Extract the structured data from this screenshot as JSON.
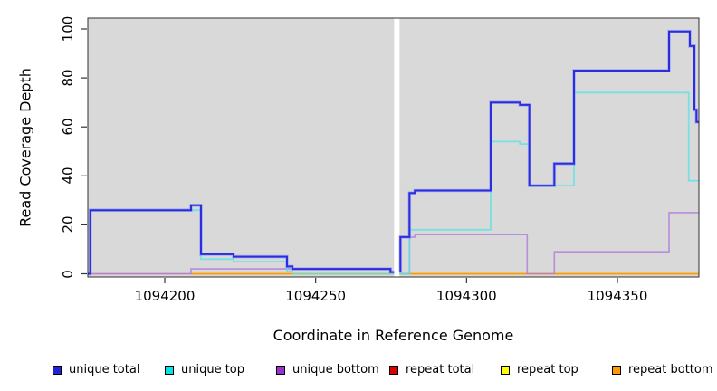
{
  "figure": {
    "x_axis_label": "Coordinate in Reference Genome",
    "y_axis_label": "Read Coverage Depth"
  },
  "chart_data": {
    "type": "line",
    "subtype": "step-coverage",
    "title": "",
    "xlabel": "Coordinate in Reference Genome",
    "ylabel": "Read Coverage Depth",
    "x_ticks": [
      1094200,
      1094250,
      1094300,
      1094350
    ],
    "y_ticks": [
      0,
      20,
      40,
      60,
      80,
      100
    ],
    "x_range": [
      1094174.5,
      1094377
    ],
    "y_range": [
      0,
      105
    ],
    "plot_bg": "#d9d9d9",
    "gap_band": {
      "x_start": 1094276.0,
      "x_end": 1094277.8,
      "color": "#ffffff"
    },
    "grid": false,
    "legend_position": "bottom",
    "series": [
      {
        "name": "repeat total",
        "line_color": "#e8808d",
        "width": 1.4,
        "opacity": 0.9,
        "parts": [
          [
            [
              1094174.6,
              0
            ],
            [
              1094276,
              0
            ]
          ],
          [
            [
              1094277.8,
              0
            ],
            [
              1094376.9,
              0
            ]
          ]
        ]
      },
      {
        "name": "repeat top",
        "line_color": "#ffff33",
        "width": 1.4,
        "opacity": 1,
        "parts": [
          [
            [
              1094208.7,
              0
            ],
            [
              1094276,
              0
            ]
          ],
          [
            [
              1094277.8,
              0
            ],
            [
              1094376.9,
              0
            ]
          ]
        ]
      },
      {
        "name": "repeat bottom",
        "line_color": "#ff9a00",
        "width": 1.8,
        "opacity": 1,
        "parts": [
          [
            [
              1094208.7,
              0
            ],
            [
              1094276,
              0
            ]
          ],
          [
            [
              1094277.8,
              0
            ],
            [
              1094376.9,
              0
            ]
          ]
        ]
      },
      {
        "name": "unique bottom",
        "line_color": "#b27fd9",
        "width": 1.6,
        "opacity": 0.85,
        "parts": [
          [
            [
              1094174.6,
              0
            ],
            [
              1094208.7,
              2
            ],
            [
              1094274.8,
              0.5
            ],
            [
              1094276,
              0.5
            ]
          ],
          [
            [
              1094277.8,
              0
            ],
            [
              1094281.1,
              15
            ],
            [
              1094282.9,
              16
            ],
            [
              1094320.1,
              0
            ],
            [
              1094329.1,
              9
            ],
            [
              1094367.1,
              25
            ],
            [
              1094376.9,
              25
            ]
          ]
        ]
      },
      {
        "name": "unique top",
        "line_color": "#5de2e6",
        "width": 1.8,
        "opacity": 0.8,
        "parts": [
          [
            [
              1094174.6,
              0
            ],
            [
              1094175.3,
              26
            ],
            [
              1094212,
              6
            ],
            [
              1094222.8,
              5
            ],
            [
              1094240.5,
              1
            ],
            [
              1094242.3,
              0
            ],
            [
              1094276,
              0
            ]
          ],
          [
            [
              1094277.8,
              0
            ],
            [
              1094281.1,
              18
            ],
            [
              1094308,
              54
            ],
            [
              1094317.7,
              53
            ],
            [
              1094320.8,
              36
            ],
            [
              1094335.6,
              74
            ],
            [
              1094373.6,
              38
            ],
            [
              1094376.9,
              38
            ]
          ]
        ]
      },
      {
        "name": "unique total",
        "line_color": "#2d2de0",
        "halo_color": "#7b8cf5",
        "width": 2,
        "opacity": 1,
        "parts": [
          [
            [
              1094174.6,
              0
            ],
            [
              1094175.3,
              26
            ],
            [
              1094208.7,
              28
            ],
            [
              1094212,
              8
            ],
            [
              1094222.8,
              7
            ],
            [
              1094240.5,
              3
            ],
            [
              1094242.3,
              2
            ],
            [
              1094274.8,
              0.7
            ],
            [
              1094276,
              0.7
            ]
          ],
          [
            [
              1094277.8,
              1
            ],
            [
              1094278.1,
              15
            ],
            [
              1094281.1,
              33
            ],
            [
              1094282.9,
              34
            ],
            [
              1094308,
              70
            ],
            [
              1094317.7,
              69
            ],
            [
              1094320.8,
              36
            ],
            [
              1094329.1,
              45
            ],
            [
              1094335.6,
              83
            ],
            [
              1094367.1,
              99
            ],
            [
              1094374,
              93
            ],
            [
              1094375.5,
              67
            ],
            [
              1094376.2,
              62
            ],
            [
              1094376.9,
              62
            ]
          ]
        ]
      }
    ]
  },
  "legend": [
    {
      "label": "unique total",
      "swatch_color": "#2222dd"
    },
    {
      "label": "unique top",
      "swatch_color": "#00e5e5"
    },
    {
      "label": "unique bottom",
      "swatch_color": "#9932cc"
    },
    {
      "label": "repeat total",
      "swatch_color": "#dd0000"
    },
    {
      "label": "repeat top",
      "swatch_color": "#ffff00"
    },
    {
      "label": "repeat bottom",
      "swatch_color": "#ff9a00"
    }
  ]
}
